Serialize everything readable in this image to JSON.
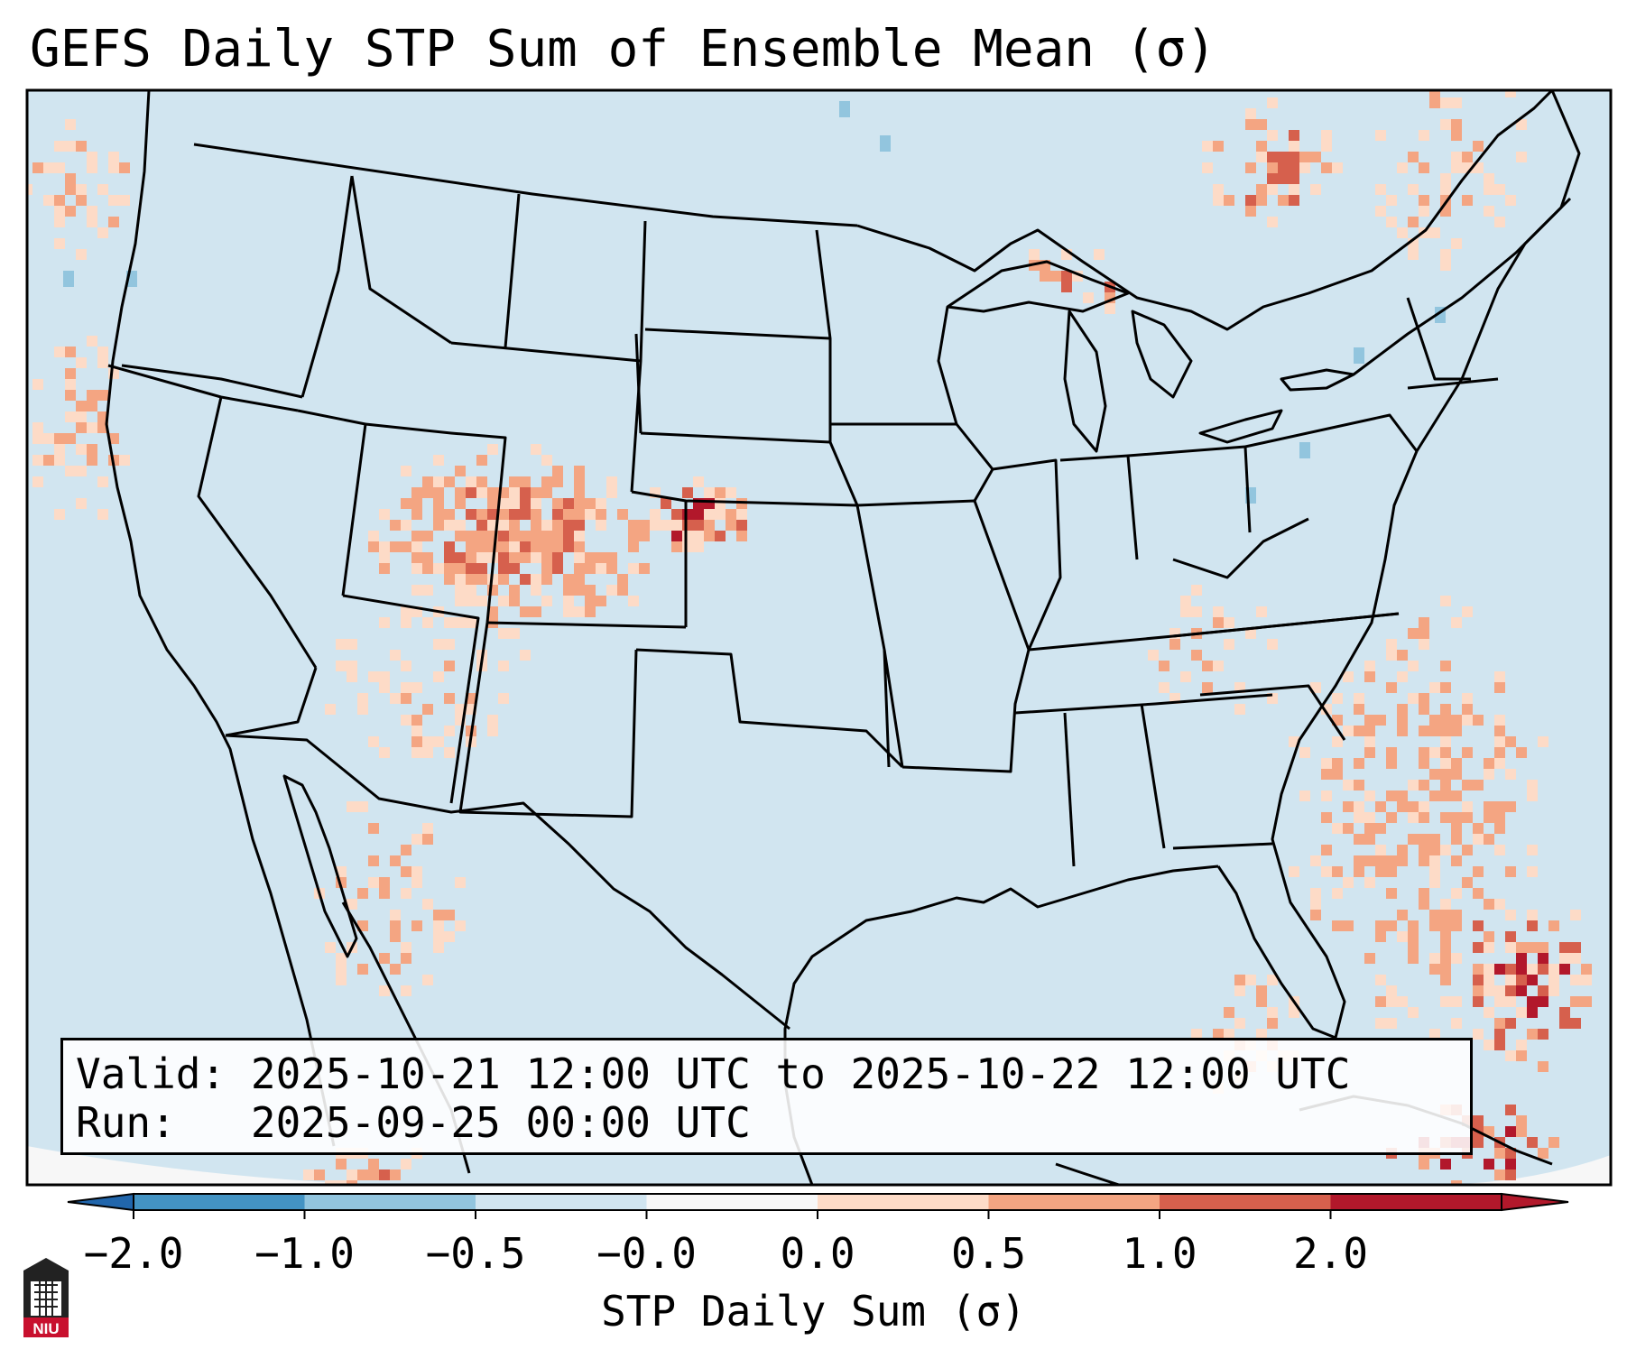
{
  "title": "GEFS Daily STP Sum of Ensemble Mean (σ)",
  "info": {
    "valid_label": "Valid:",
    "valid_value": "2025-10-21 12:00 UTC to 2025-10-22 12:00 UTC",
    "run_label": "Run:",
    "run_value": "2025-09-25 00:00 UTC"
  },
  "colorbar": {
    "label": "STP Daily Sum (σ)",
    "ticks": [
      "−2.0",
      "−1.0",
      "−0.5",
      "−0.0",
      "0.0",
      "0.5",
      "1.0",
      "2.0"
    ],
    "colors": [
      "#4393c3",
      "#92c5de",
      "#d1e5f0",
      "#f7f7f7",
      "#fddbc7",
      "#f4a582",
      "#d6604d",
      "#b2182b"
    ],
    "extend": "both",
    "under_color": "#2166ac",
    "over_color": "#b2182b"
  },
  "map": {
    "background_value_color": "#d1e5f0",
    "outside_domain_color": "#f7f7f7",
    "region": "CONUS",
    "projection": "Lambert Conformal"
  },
  "logo": {
    "text": "NIU"
  }
}
